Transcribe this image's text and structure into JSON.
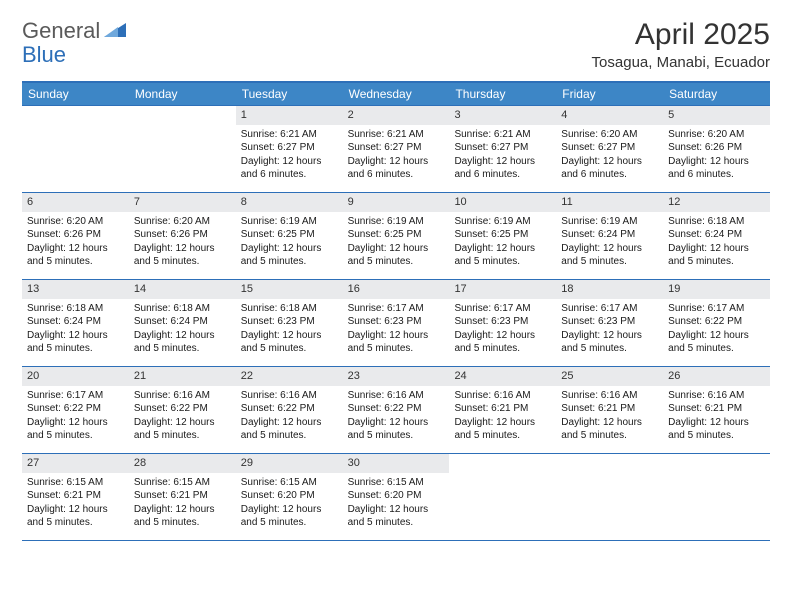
{
  "logo": {
    "general": "General",
    "blue": "Blue"
  },
  "title": "April 2025",
  "location": "Tosagua, Manabi, Ecuador",
  "colors": {
    "header_bg": "#3d86c6",
    "border": "#2d6fb8",
    "daynum_bg": "#e9eaec",
    "text": "#1a1a1a",
    "title_text": "#333333",
    "logo_gray": "#5a5a5a",
    "logo_blue": "#2d6fb8"
  },
  "day_headers": [
    "Sunday",
    "Monday",
    "Tuesday",
    "Wednesday",
    "Thursday",
    "Friday",
    "Saturday"
  ],
  "weeks": [
    [
      null,
      null,
      {
        "n": "1",
        "sr": "6:21 AM",
        "ss": "6:27 PM",
        "dl": "12 hours and 6 minutes."
      },
      {
        "n": "2",
        "sr": "6:21 AM",
        "ss": "6:27 PM",
        "dl": "12 hours and 6 minutes."
      },
      {
        "n": "3",
        "sr": "6:21 AM",
        "ss": "6:27 PM",
        "dl": "12 hours and 6 minutes."
      },
      {
        "n": "4",
        "sr": "6:20 AM",
        "ss": "6:27 PM",
        "dl": "12 hours and 6 minutes."
      },
      {
        "n": "5",
        "sr": "6:20 AM",
        "ss": "6:26 PM",
        "dl": "12 hours and 6 minutes."
      }
    ],
    [
      {
        "n": "6",
        "sr": "6:20 AM",
        "ss": "6:26 PM",
        "dl": "12 hours and 5 minutes."
      },
      {
        "n": "7",
        "sr": "6:20 AM",
        "ss": "6:26 PM",
        "dl": "12 hours and 5 minutes."
      },
      {
        "n": "8",
        "sr": "6:19 AM",
        "ss": "6:25 PM",
        "dl": "12 hours and 5 minutes."
      },
      {
        "n": "9",
        "sr": "6:19 AM",
        "ss": "6:25 PM",
        "dl": "12 hours and 5 minutes."
      },
      {
        "n": "10",
        "sr": "6:19 AM",
        "ss": "6:25 PM",
        "dl": "12 hours and 5 minutes."
      },
      {
        "n": "11",
        "sr": "6:19 AM",
        "ss": "6:24 PM",
        "dl": "12 hours and 5 minutes."
      },
      {
        "n": "12",
        "sr": "6:18 AM",
        "ss": "6:24 PM",
        "dl": "12 hours and 5 minutes."
      }
    ],
    [
      {
        "n": "13",
        "sr": "6:18 AM",
        "ss": "6:24 PM",
        "dl": "12 hours and 5 minutes."
      },
      {
        "n": "14",
        "sr": "6:18 AM",
        "ss": "6:24 PM",
        "dl": "12 hours and 5 minutes."
      },
      {
        "n": "15",
        "sr": "6:18 AM",
        "ss": "6:23 PM",
        "dl": "12 hours and 5 minutes."
      },
      {
        "n": "16",
        "sr": "6:17 AM",
        "ss": "6:23 PM",
        "dl": "12 hours and 5 minutes."
      },
      {
        "n": "17",
        "sr": "6:17 AM",
        "ss": "6:23 PM",
        "dl": "12 hours and 5 minutes."
      },
      {
        "n": "18",
        "sr": "6:17 AM",
        "ss": "6:23 PM",
        "dl": "12 hours and 5 minutes."
      },
      {
        "n": "19",
        "sr": "6:17 AM",
        "ss": "6:22 PM",
        "dl": "12 hours and 5 minutes."
      }
    ],
    [
      {
        "n": "20",
        "sr": "6:17 AM",
        "ss": "6:22 PM",
        "dl": "12 hours and 5 minutes."
      },
      {
        "n": "21",
        "sr": "6:16 AM",
        "ss": "6:22 PM",
        "dl": "12 hours and 5 minutes."
      },
      {
        "n": "22",
        "sr": "6:16 AM",
        "ss": "6:22 PM",
        "dl": "12 hours and 5 minutes."
      },
      {
        "n": "23",
        "sr": "6:16 AM",
        "ss": "6:22 PM",
        "dl": "12 hours and 5 minutes."
      },
      {
        "n": "24",
        "sr": "6:16 AM",
        "ss": "6:21 PM",
        "dl": "12 hours and 5 minutes."
      },
      {
        "n": "25",
        "sr": "6:16 AM",
        "ss": "6:21 PM",
        "dl": "12 hours and 5 minutes."
      },
      {
        "n": "26",
        "sr": "6:16 AM",
        "ss": "6:21 PM",
        "dl": "12 hours and 5 minutes."
      }
    ],
    [
      {
        "n": "27",
        "sr": "6:15 AM",
        "ss": "6:21 PM",
        "dl": "12 hours and 5 minutes."
      },
      {
        "n": "28",
        "sr": "6:15 AM",
        "ss": "6:21 PM",
        "dl": "12 hours and 5 minutes."
      },
      {
        "n": "29",
        "sr": "6:15 AM",
        "ss": "6:20 PM",
        "dl": "12 hours and 5 minutes."
      },
      {
        "n": "30",
        "sr": "6:15 AM",
        "ss": "6:20 PM",
        "dl": "12 hours and 5 minutes."
      },
      null,
      null,
      null
    ]
  ],
  "labels": {
    "sunrise": "Sunrise: ",
    "sunset": "Sunset: ",
    "daylight": "Daylight: "
  }
}
